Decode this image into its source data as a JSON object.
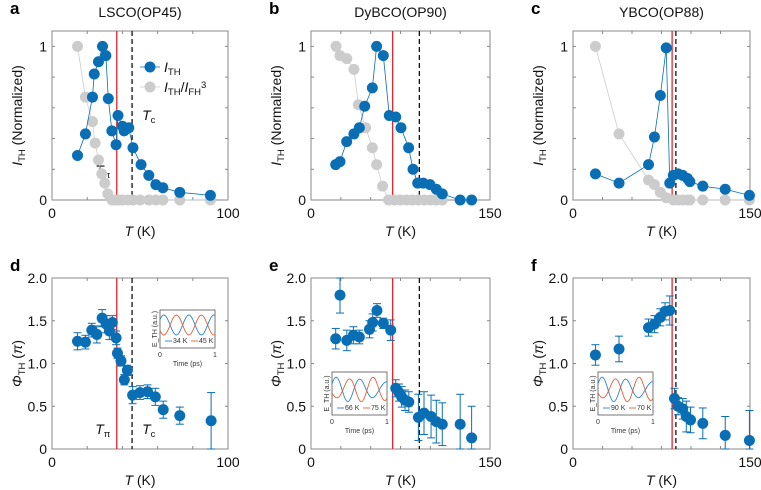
{
  "colors": {
    "blue": "#0a6eb4",
    "gray": "#cccccc",
    "red": "#e0262e",
    "black": "#111111",
    "inset_blue": "#2a86c8",
    "inset_orange": "#e0603a"
  },
  "chart_data": [
    {
      "panel": "a",
      "title": "LSCO(OP45)",
      "type": "scatter",
      "xlim": [
        0,
        100
      ],
      "ylim": [
        0,
        1.1
      ],
      "xticks": [
        "0",
        "100"
      ],
      "yticks": [
        "0",
        "1"
      ],
      "xlabel": [
        {
          "t": "T",
          "s": "i"
        },
        {
          "t": " (K)"
        }
      ],
      "ylabel": [
        {
          "t": "I",
          "s": "i"
        },
        {
          "t": "TH",
          "s": "sub"
        },
        {
          "t": " (Normalized)"
        }
      ],
      "vlines": {
        "T_pi": 36.8,
        "T_c": 45.5
      },
      "annotations": {
        "T_pi": [
          {
            "t": "T",
            "s": "i"
          },
          {
            "t": "π",
            "s": "sub"
          }
        ],
        "T_c": [
          {
            "t": "T",
            "s": "i"
          },
          {
            "t": "c",
            "s": "sub"
          }
        ]
      },
      "legend": {
        "placement": "top-right",
        "entries": [
          [
            {
              "t": "I",
              "s": "i"
            },
            {
              "t": "TH",
              "s": "sub"
            }
          ],
          [
            {
              "t": "I",
              "s": "i"
            },
            {
              "t": "TH",
              "s": "sub"
            },
            {
              "t": "/"
            },
            {
              "t": "I",
              "s": "i"
            },
            {
              "t": "FH",
              "s": "sub"
            },
            {
              "t": "3",
              "s": "sup"
            }
          ]
        ]
      },
      "series": [
        {
          "name": "I_TH",
          "color": "blue",
          "x": [
            14.5,
            19,
            23,
            24,
            26.4,
            28.7,
            30.6,
            32,
            34,
            36.4,
            37.5,
            40,
            41,
            43.6,
            46,
            50.6,
            55,
            59,
            63,
            72.6,
            90
          ],
          "y": [
            0.29,
            0.43,
            0.67,
            0.82,
            0.9,
            1.0,
            0.94,
            0.66,
            0.45,
            0.36,
            0.55,
            0.48,
            0.45,
            0.47,
            0.34,
            0.23,
            0.16,
            0.1,
            0.08,
            0.05,
            0.03
          ]
        },
        {
          "name": "I_TH/I_FH^3",
          "color": "gray",
          "x": [
            14.5,
            19,
            23,
            24.5,
            26.4,
            28.3,
            30,
            31.7,
            34,
            36,
            38,
            40,
            43,
            46,
            50,
            55,
            59,
            63,
            72.6,
            90
          ],
          "y": [
            1.0,
            0.67,
            0.51,
            0.37,
            0.26,
            0.17,
            0.11,
            0.04,
            0,
            0,
            0,
            0,
            0,
            0,
            0,
            0,
            0,
            0,
            0,
            0
          ]
        }
      ]
    },
    {
      "panel": "b",
      "title": "DyBCO(OP90)",
      "type": "scatter",
      "xlim": [
        0,
        150
      ],
      "ylim": [
        0,
        1.1
      ],
      "xticks": [
        "0",
        "150"
      ],
      "yticks": [
        "0",
        "1"
      ],
      "xlabel": [
        {
          "t": "T",
          "s": "i"
        },
        {
          "t": " (K)"
        }
      ],
      "ylabel": [
        {
          "t": "I",
          "s": "i"
        },
        {
          "t": "TH",
          "s": "sub"
        },
        {
          "t": " (Normalized)"
        }
      ],
      "vlines": {
        "T_pi": 68.4,
        "T_c": 90.8
      },
      "series": [
        {
          "name": "I_TH",
          "color": "blue",
          "x": [
            20.7,
            24.3,
            29.9,
            36,
            40.5,
            45,
            51.4,
            55,
            60.6,
            65.6,
            71,
            75.4,
            81.8,
            85.5,
            89.4,
            94,
            99.7,
            105,
            110,
            125,
            134.6
          ],
          "y": [
            0.23,
            0.25,
            0.38,
            0.43,
            0.47,
            0.61,
            0.73,
            1.0,
            0.94,
            0.55,
            0.54,
            0.47,
            0.34,
            0.2,
            0.11,
            0.11,
            0.1,
            0.07,
            0.04,
            0,
            0
          ]
        },
        {
          "name": "I_TH/I_FH^3",
          "color": "gray",
          "x": [
            21,
            24.3,
            30,
            36,
            39.7,
            45.8,
            51.4,
            55,
            60,
            65,
            70,
            75,
            80,
            85,
            90,
            95,
            100,
            105,
            110
          ],
          "y": [
            1.0,
            0.94,
            0.92,
            0.85,
            0.62,
            0.47,
            0.34,
            0.23,
            0.09,
            0,
            0,
            0,
            0,
            0,
            0,
            0,
            0,
            0,
            0
          ]
        }
      ]
    },
    {
      "panel": "c",
      "title": "YBCO(OP88)",
      "type": "scatter",
      "xlim": [
        0,
        150
      ],
      "ylim": [
        0,
        1.1
      ],
      "xticks": [
        "0",
        "150"
      ],
      "yticks": [
        "0",
        "1"
      ],
      "xlabel": [
        {
          "t": "T",
          "s": "i"
        },
        {
          "t": " (K)"
        }
      ],
      "ylabel": [
        {
          "t": "I",
          "s": "i"
        },
        {
          "t": "TH",
          "s": "sub"
        },
        {
          "t": " (Normalized)"
        }
      ],
      "vlines": {
        "T_pi": 84,
        "T_c": 87.2
      },
      "series": [
        {
          "name": "I_TH",
          "color": "blue",
          "x": [
            19,
            39,
            64,
            69,
            74,
            79,
            82,
            85,
            89,
            93,
            97,
            99,
            110,
            129,
            149.5
          ],
          "y": [
            0.17,
            0.11,
            0.23,
            0.41,
            0.68,
            0.99,
            0.11,
            0.16,
            0.17,
            0.16,
            0.14,
            0.12,
            0.09,
            0.07,
            0.03
          ]
        },
        {
          "name": "I_TH/I_FH^3",
          "color": "gray",
          "x": [
            19,
            39,
            64,
            69,
            74,
            79,
            85,
            89,
            93,
            97,
            99,
            110,
            129,
            149.5
          ],
          "y": [
            1.0,
            0.43,
            0.13,
            0.1,
            0.05,
            0.015,
            0,
            0,
            0,
            0,
            0,
            0,
            0,
            0
          ]
        }
      ]
    },
    {
      "panel": "d",
      "type": "scatter",
      "xlim": [
        0,
        100
      ],
      "ylim": [
        0,
        2.0
      ],
      "xticks": [
        "0",
        "100"
      ],
      "yticks": [
        "0",
        "0.5",
        "1.0",
        "1.5",
        "2.0"
      ],
      "xlabel": [
        {
          "t": "T",
          "s": "i"
        },
        {
          "t": " (K)"
        }
      ],
      "ylabel": [
        {
          "t": "Φ",
          "s": "i"
        },
        {
          "t": "TH",
          "s": "sub"
        },
        {
          "t": " ("
        },
        {
          "t": "π",
          "s": "i"
        },
        {
          "t": ")"
        }
      ],
      "vlines": {
        "T_pi": 36.8,
        "T_c": 45.5
      },
      "annotations": {
        "T_pi": [
          {
            "t": "T",
            "s": "i"
          },
          {
            "t": "π",
            "s": "sub"
          }
        ],
        "T_c": [
          {
            "t": "T",
            "s": "i"
          },
          {
            "t": "c",
            "s": "sub"
          }
        ]
      },
      "series": [
        {
          "name": "Φ_TH",
          "color": "blue",
          "x": [
            14.5,
            19,
            22.6,
            25.5,
            28.5,
            30.8,
            32.6,
            34.3,
            36.4,
            37.2,
            39.2,
            41.1,
            42.8,
            45.8,
            50,
            54.3,
            58.7,
            63.2,
            72.6,
            90.4
          ],
          "y": [
            1.26,
            1.25,
            1.39,
            1.34,
            1.53,
            1.46,
            1.38,
            1.48,
            1.3,
            1.12,
            1.03,
            0.81,
            0.92,
            0.63,
            0.66,
            0.67,
            0.61,
            0.46,
            0.39,
            0.33
          ],
          "err": [
            0.1,
            0.08,
            0.08,
            0.1,
            0.1,
            0.1,
            0.1,
            0.08,
            0.08,
            0.06,
            0.06,
            0.06,
            0.06,
            0.1,
            0.08,
            0.08,
            0.1,
            0.1,
            0.1,
            0.33
          ]
        }
      ],
      "inset": {
        "xlabel": "Time (ps)",
        "ylabel": "E_TH (a.u.)",
        "xticks": [
          "0",
          "1"
        ],
        "legend": [
          "34 K",
          "45 K"
        ]
      }
    },
    {
      "panel": "e",
      "type": "scatter",
      "xlim": [
        0,
        150
      ],
      "ylim": [
        0,
        2.0
      ],
      "xticks": [
        "0",
        "150"
      ],
      "yticks": [
        "0",
        "0.5",
        "1.0",
        "1.5",
        "2.0"
      ],
      "xlabel": [
        {
          "t": "T",
          "s": "i"
        },
        {
          "t": " (K)"
        }
      ],
      "ylabel": [
        {
          "t": "Φ",
          "s": "i"
        },
        {
          "t": "TH",
          "s": "sub"
        },
        {
          "t": " ("
        },
        {
          "t": "π",
          "s": "i"
        },
        {
          "t": ")"
        }
      ],
      "vlines": {
        "T_pi": 68.4,
        "T_c": 90.8
      },
      "series": [
        {
          "name": "Φ_TH",
          "color": "blue",
          "x": [
            20.7,
            24.3,
            30,
            35.5,
            40.5,
            49,
            51.7,
            55.3,
            60.6,
            66.8,
            71,
            73.7,
            76,
            78.8,
            82,
            90,
            94.7,
            100.6,
            105,
            110,
            125,
            134.6
          ],
          "y": [
            1.29,
            1.8,
            1.27,
            1.33,
            1.31,
            1.4,
            1.48,
            1.62,
            1.47,
            1.39,
            0.71,
            0.66,
            0.61,
            0.57,
            0.55,
            0.37,
            0.42,
            0.38,
            0.32,
            0.29,
            0.29,
            0.13
          ],
          "err": [
            0.12,
            0.21,
            0.12,
            0.1,
            0.08,
            0.1,
            0.1,
            0.08,
            0.06,
            0.12,
            0.1,
            0.1,
            0.12,
            0.12,
            0.12,
            0.27,
            0.25,
            0.25,
            0.25,
            0.25,
            0.35,
            0.37
          ]
        }
      ],
      "inset": {
        "xlabel": "Time (ps)",
        "ylabel": "E_TH (a.u.)",
        "xticks": [
          "0",
          "1"
        ],
        "legend": [
          "66 K",
          "75 K"
        ]
      }
    },
    {
      "panel": "f",
      "type": "scatter",
      "xlim": [
        0,
        150
      ],
      "ylim": [
        0,
        2.0
      ],
      "xticks": [
        "0",
        "150"
      ],
      "yticks": [
        "0",
        "0.5",
        "1.0",
        "1.5",
        "2.0"
      ],
      "xlabel": [
        {
          "t": "T",
          "s": "i"
        },
        {
          "t": " (K)"
        }
      ],
      "ylabel": [
        {
          "t": "Φ",
          "s": "i"
        },
        {
          "t": "TH",
          "s": "sub"
        },
        {
          "t": " ("
        },
        {
          "t": "π",
          "s": "i"
        },
        {
          "t": ")"
        }
      ],
      "vlines": {
        "T_pi": 84,
        "T_c": 87.2
      },
      "series": [
        {
          "name": "Φ_TH",
          "color": "blue",
          "x": [
            19,
            39,
            64,
            69,
            74,
            78,
            82,
            86,
            89,
            93,
            96,
            99.6,
            110,
            129,
            149.5
          ],
          "y": [
            1.1,
            1.17,
            1.42,
            1.46,
            1.54,
            1.61,
            1.62,
            0.59,
            0.5,
            0.47,
            0.38,
            0.34,
            0.3,
            0.16,
            0.1
          ],
          "err": [
            0.12,
            0.15,
            0.1,
            0.1,
            0.1,
            0.1,
            0.17,
            0.12,
            0.1,
            0.12,
            0.18,
            0.15,
            0.18,
            0.22,
            0.35
          ]
        }
      ],
      "inset": {
        "xlabel": "Time (ps)",
        "ylabel": "E_TH (a.u.)",
        "xticks": [
          "0",
          "1"
        ],
        "legend": [
          "90 K",
          "70 K"
        ]
      }
    }
  ]
}
